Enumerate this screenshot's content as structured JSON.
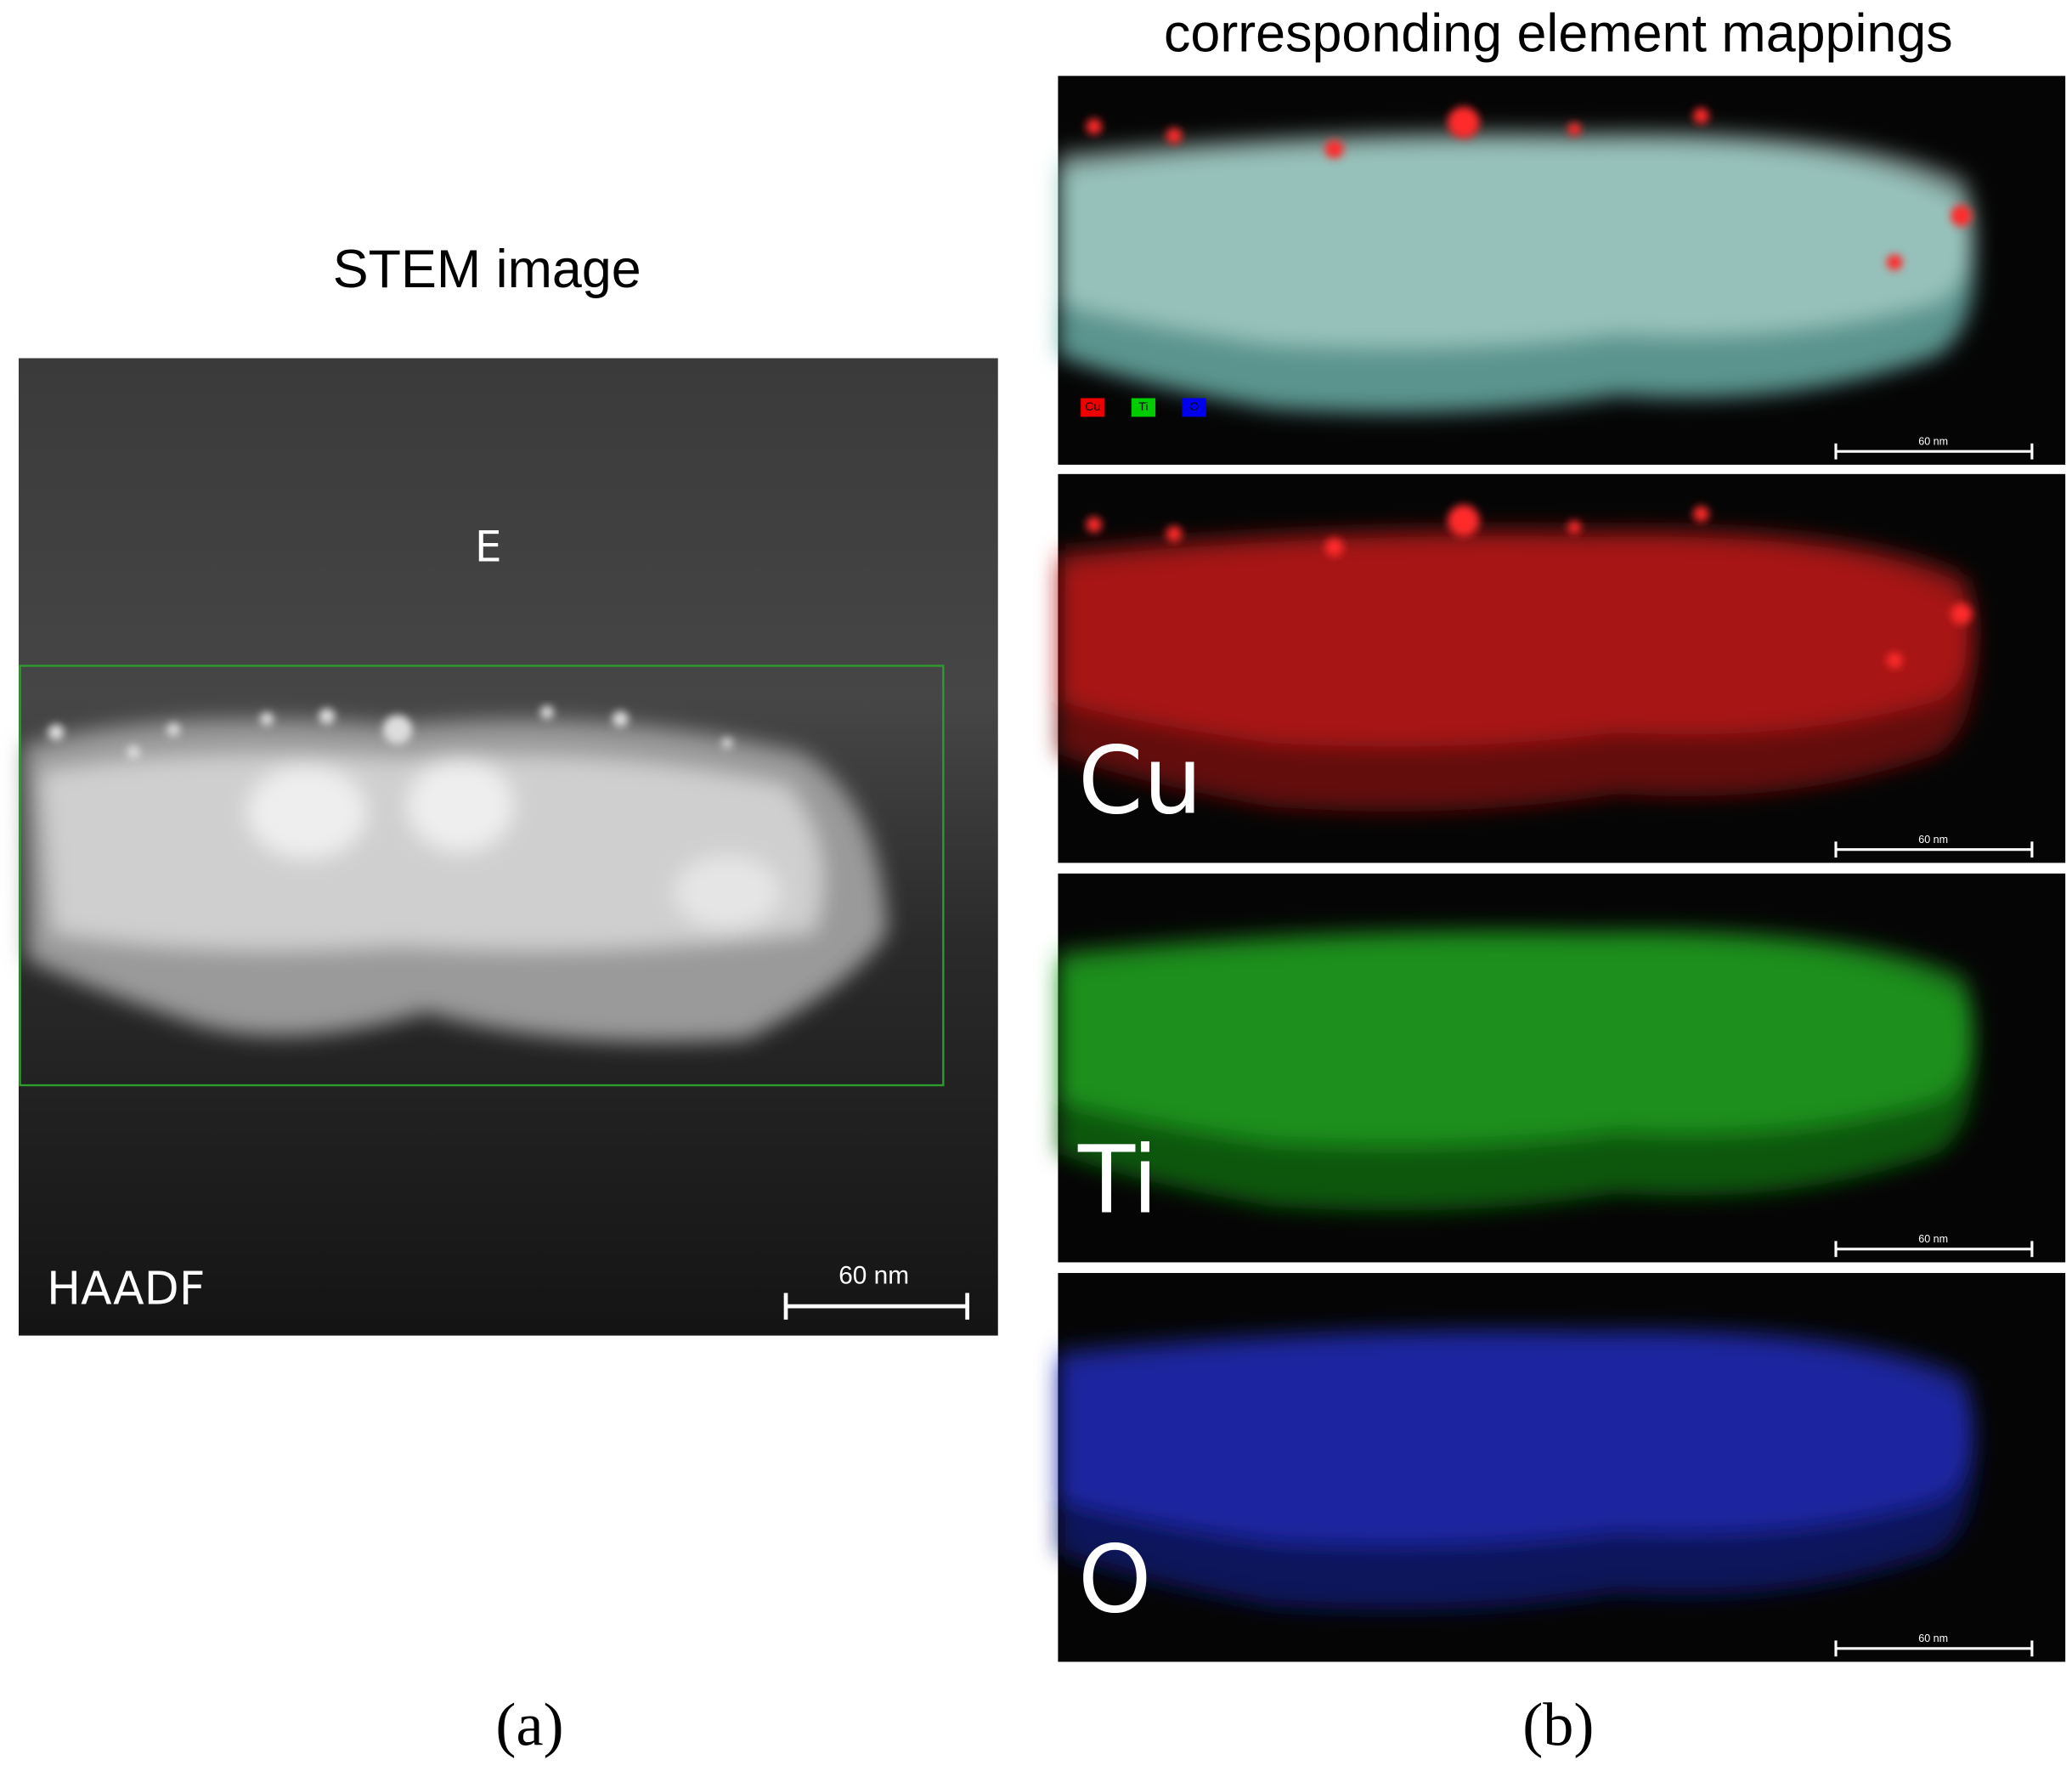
{
  "stem": {
    "title": "STEM image",
    "region_label": "E",
    "mode": "HAADF",
    "scale_bar": "60 nm",
    "caption": "(a)"
  },
  "mappings": {
    "title": "corresponding element mappings",
    "legend": [
      "Cu",
      "Ti",
      "O"
    ],
    "panels": [
      {
        "scale_bar": "60 nm"
      },
      {
        "label": "Cu",
        "scale_bar": "60 nm"
      },
      {
        "label": "Ti",
        "scale_bar": "60 nm"
      },
      {
        "label": "O",
        "scale_bar": "60 nm"
      }
    ],
    "caption": "(b)"
  }
}
